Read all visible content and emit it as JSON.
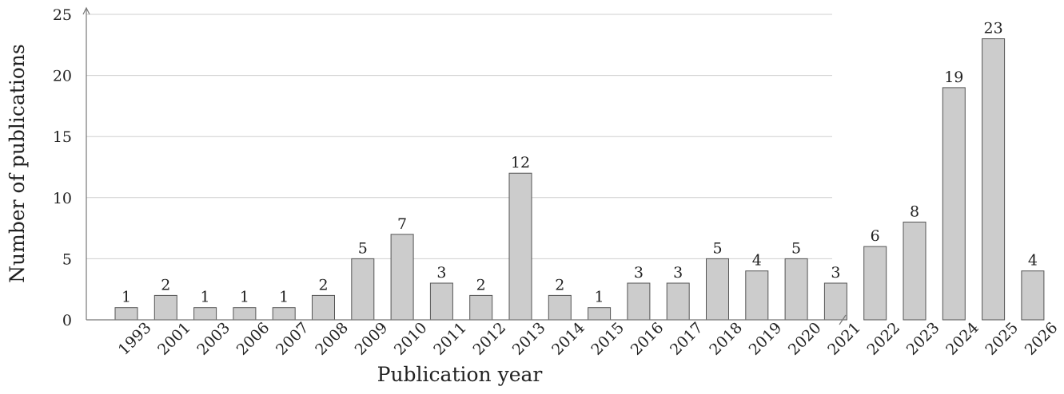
{
  "chart_data": {
    "type": "bar",
    "title": "",
    "xlabel": "Publication year",
    "ylabel": "Number of publications",
    "ylim": [
      0,
      25
    ],
    "yticks": [
      0,
      5,
      10,
      15,
      20,
      25
    ],
    "grid": "horizontal",
    "categories": [
      "1993",
      "2001",
      "2003",
      "2006",
      "2007",
      "2008",
      "2009",
      "2010",
      "2011",
      "2012",
      "2013",
      "2014",
      "2015",
      "2016",
      "2017",
      "2018",
      "2019",
      "2020",
      "2021",
      "2022",
      "2023",
      "2024",
      "2025",
      "2026"
    ],
    "values": [
      1,
      2,
      1,
      1,
      1,
      2,
      5,
      7,
      3,
      2,
      12,
      2,
      1,
      3,
      3,
      5,
      4,
      5,
      3,
      6,
      8,
      19,
      23,
      4
    ],
    "colors": {
      "bar": "#cccccc",
      "bar_edge": "#555555",
      "grid": "#cfcfcf",
      "axis": "#777777"
    }
  }
}
